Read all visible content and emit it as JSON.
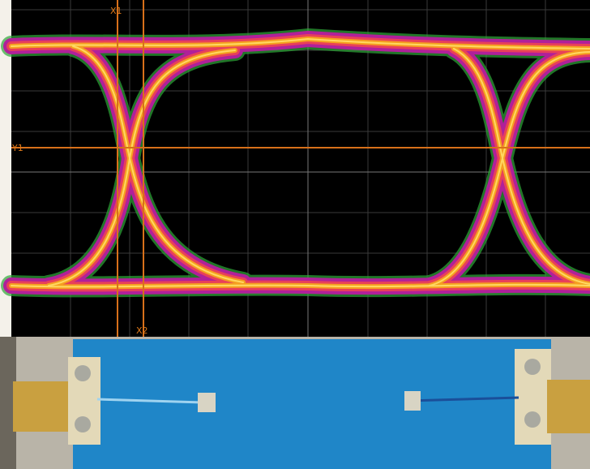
{
  "cursors": {
    "x1": "X1",
    "x2": "X2",
    "y1": "Y1"
  }
}
